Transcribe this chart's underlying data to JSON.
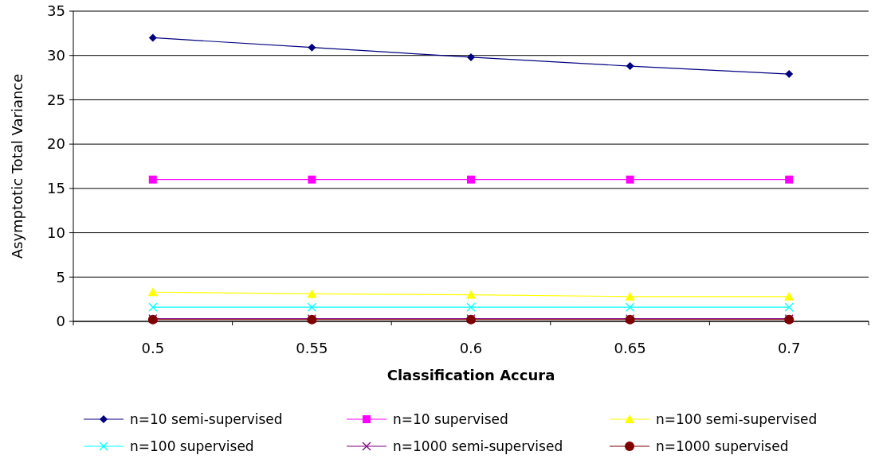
{
  "chart_data": {
    "type": "line",
    "xlabel": "Classification Accura",
    "ylabel": "Asymptotic Total Variance",
    "categories": [
      "0.5",
      "0.55",
      "0.6",
      "0.65",
      "0.7"
    ],
    "ylim": [
      0,
      35
    ],
    "yticks": [
      0,
      5,
      10,
      15,
      20,
      25,
      30,
      35
    ],
    "grid": "y",
    "legend": "bottom",
    "series": [
      {
        "name": "n=10 semi-supervised",
        "color": "#000080",
        "marker": "diamond",
        "values": [
          32,
          30.9,
          29.8,
          28.8,
          27.9
        ]
      },
      {
        "name": "n=10 supervised",
        "color": "#ff00ff",
        "marker": "square",
        "values": [
          16,
          16,
          16,
          16,
          16
        ]
      },
      {
        "name": "n=100 semi-supervised",
        "color": "#ffff00",
        "marker": "triangle",
        "values": [
          3.3,
          3.1,
          3.0,
          2.8,
          2.8
        ]
      },
      {
        "name": "n=100 supervised",
        "color": "#00ffff",
        "marker": "cross",
        "values": [
          1.6,
          1.6,
          1.6,
          1.6,
          1.6
        ]
      },
      {
        "name": "n=1000 semi-supervised",
        "color": "#800080",
        "marker": "cross",
        "values": [
          0.3,
          0.3,
          0.3,
          0.3,
          0.3
        ]
      },
      {
        "name": "n=1000 supervised",
        "color": "#800000",
        "marker": "circle",
        "values": [
          0.2,
          0.2,
          0.2,
          0.2,
          0.2
        ]
      }
    ]
  }
}
